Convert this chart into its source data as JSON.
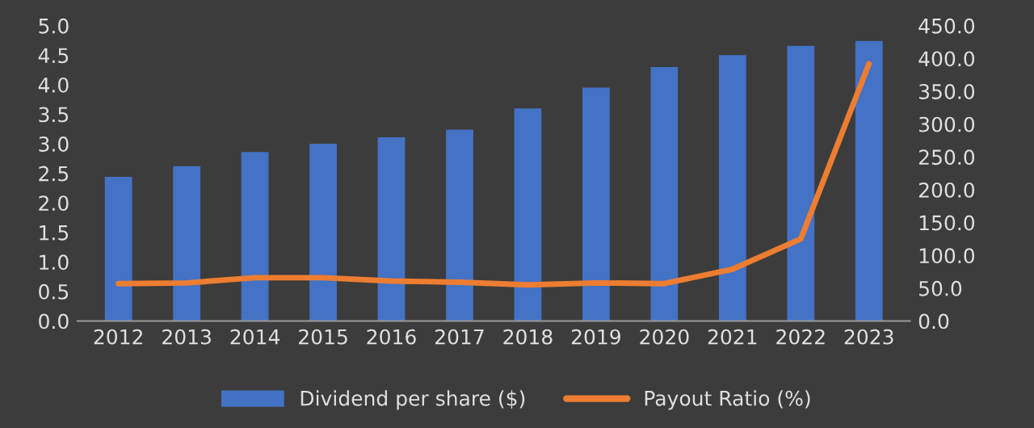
{
  "chart_data": {
    "type": "bar",
    "categories": [
      "2012",
      "2013",
      "2014",
      "2015",
      "2016",
      "2017",
      "2018",
      "2019",
      "2020",
      "2021",
      "2022",
      "2023"
    ],
    "series": [
      {
        "name": "Dividend per share ($)",
        "color": "#4472c4",
        "values": [
          2.44,
          2.62,
          2.86,
          3.0,
          3.11,
          3.24,
          3.6,
          3.95,
          4.3,
          4.5,
          4.66,
          4.74
        ]
      },
      {
        "name": "Payout Ratio (%)",
        "type": "line",
        "axis": "y2",
        "color": "#ed7d31",
        "values": [
          57,
          58,
          66,
          66,
          61,
          59,
          55,
          58,
          57,
          79,
          125,
          392
        ]
      }
    ],
    "ylim": [
      0,
      5
    ],
    "yticks": [
      {
        "value": 0,
        "label": "0.0"
      },
      {
        "value": 0.5,
        "label": "0.5"
      },
      {
        "value": 1,
        "label": "1.0"
      },
      {
        "value": 1.5,
        "label": "1.5"
      },
      {
        "value": 2,
        "label": "2.0"
      },
      {
        "value": 2.5,
        "label": "2.5"
      },
      {
        "value": 3,
        "label": "3.0"
      },
      {
        "value": 3.5,
        "label": "3.5"
      },
      {
        "value": 4,
        "label": "4.0"
      },
      {
        "value": 4.5,
        "label": "4.5"
      },
      {
        "value": 5,
        "label": "5.0"
      }
    ],
    "y2lim": [
      0,
      450
    ],
    "y2ticks": [
      {
        "value": 0,
        "label": "0.0"
      },
      {
        "value": 50,
        "label": "50.0"
      },
      {
        "value": 100,
        "label": "100.0"
      },
      {
        "value": 150,
        "label": "150.0"
      },
      {
        "value": 200,
        "label": "200.0"
      },
      {
        "value": 250,
        "label": "250.0"
      },
      {
        "value": 300,
        "label": "300.0"
      },
      {
        "value": 350,
        "label": "350.0"
      },
      {
        "value": 400,
        "label": "400.0"
      },
      {
        "value": 450,
        "label": "450.0"
      }
    ],
    "grid": false,
    "legend": "bottom",
    "marker": "none",
    "line_style": "solid"
  }
}
